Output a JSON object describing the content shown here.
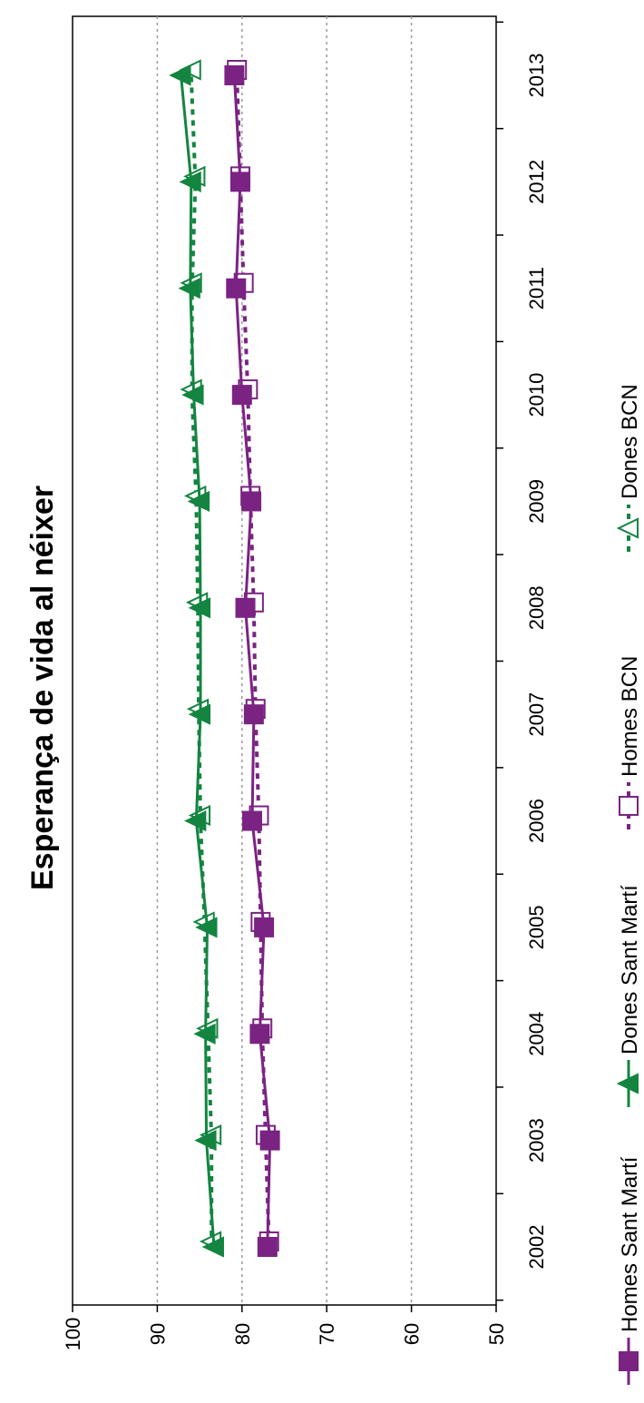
{
  "chart_data": {
    "type": "line",
    "title": "Esperança de vida al néixer",
    "orientation": "rotated-90-ccw",
    "categories": [
      "2002",
      "2003",
      "2004",
      "2005",
      "2006",
      "2007",
      "2008",
      "2009",
      "2010",
      "2011",
      "2012",
      "2013"
    ],
    "ylim": [
      50,
      100
    ],
    "yticks": [
      "100",
      "90",
      "80",
      "70",
      "60",
      "50"
    ],
    "grid": true,
    "legend_position": "bottom",
    "series": [
      {
        "name": "Homes Sant Martí",
        "color": "#7b2383",
        "marker": "square-filled",
        "line": "solid",
        "values": [
          77.0,
          76.7,
          77.9,
          77.4,
          78.8,
          78.6,
          79.6,
          78.9,
          80.0,
          80.7,
          80.2,
          80.9
        ]
      },
      {
        "name": "Dones Sant Martí",
        "color": "#138540",
        "marker": "triangle-filled",
        "line": "solid",
        "values": [
          83.3,
          84.2,
          84.3,
          84.1,
          85.4,
          84.9,
          84.9,
          85.0,
          85.7,
          86.1,
          86.0,
          87.2
        ]
      },
      {
        "name": "Homes BCN",
        "color": "#7b2383",
        "marker": "square-open",
        "line": "dashed",
        "values": [
          76.8,
          77.2,
          77.6,
          77.8,
          78.0,
          78.4,
          78.6,
          79.0,
          79.3,
          79.8,
          80.2,
          80.6
        ]
      },
      {
        "name": "Dones BCN",
        "color": "#138540",
        "marker": "triangle-open",
        "line": "dashed",
        "values": [
          83.6,
          83.6,
          84.0,
          84.4,
          84.9,
          85.1,
          85.2,
          85.4,
          85.9,
          85.9,
          85.5,
          86.0
        ]
      }
    ]
  }
}
